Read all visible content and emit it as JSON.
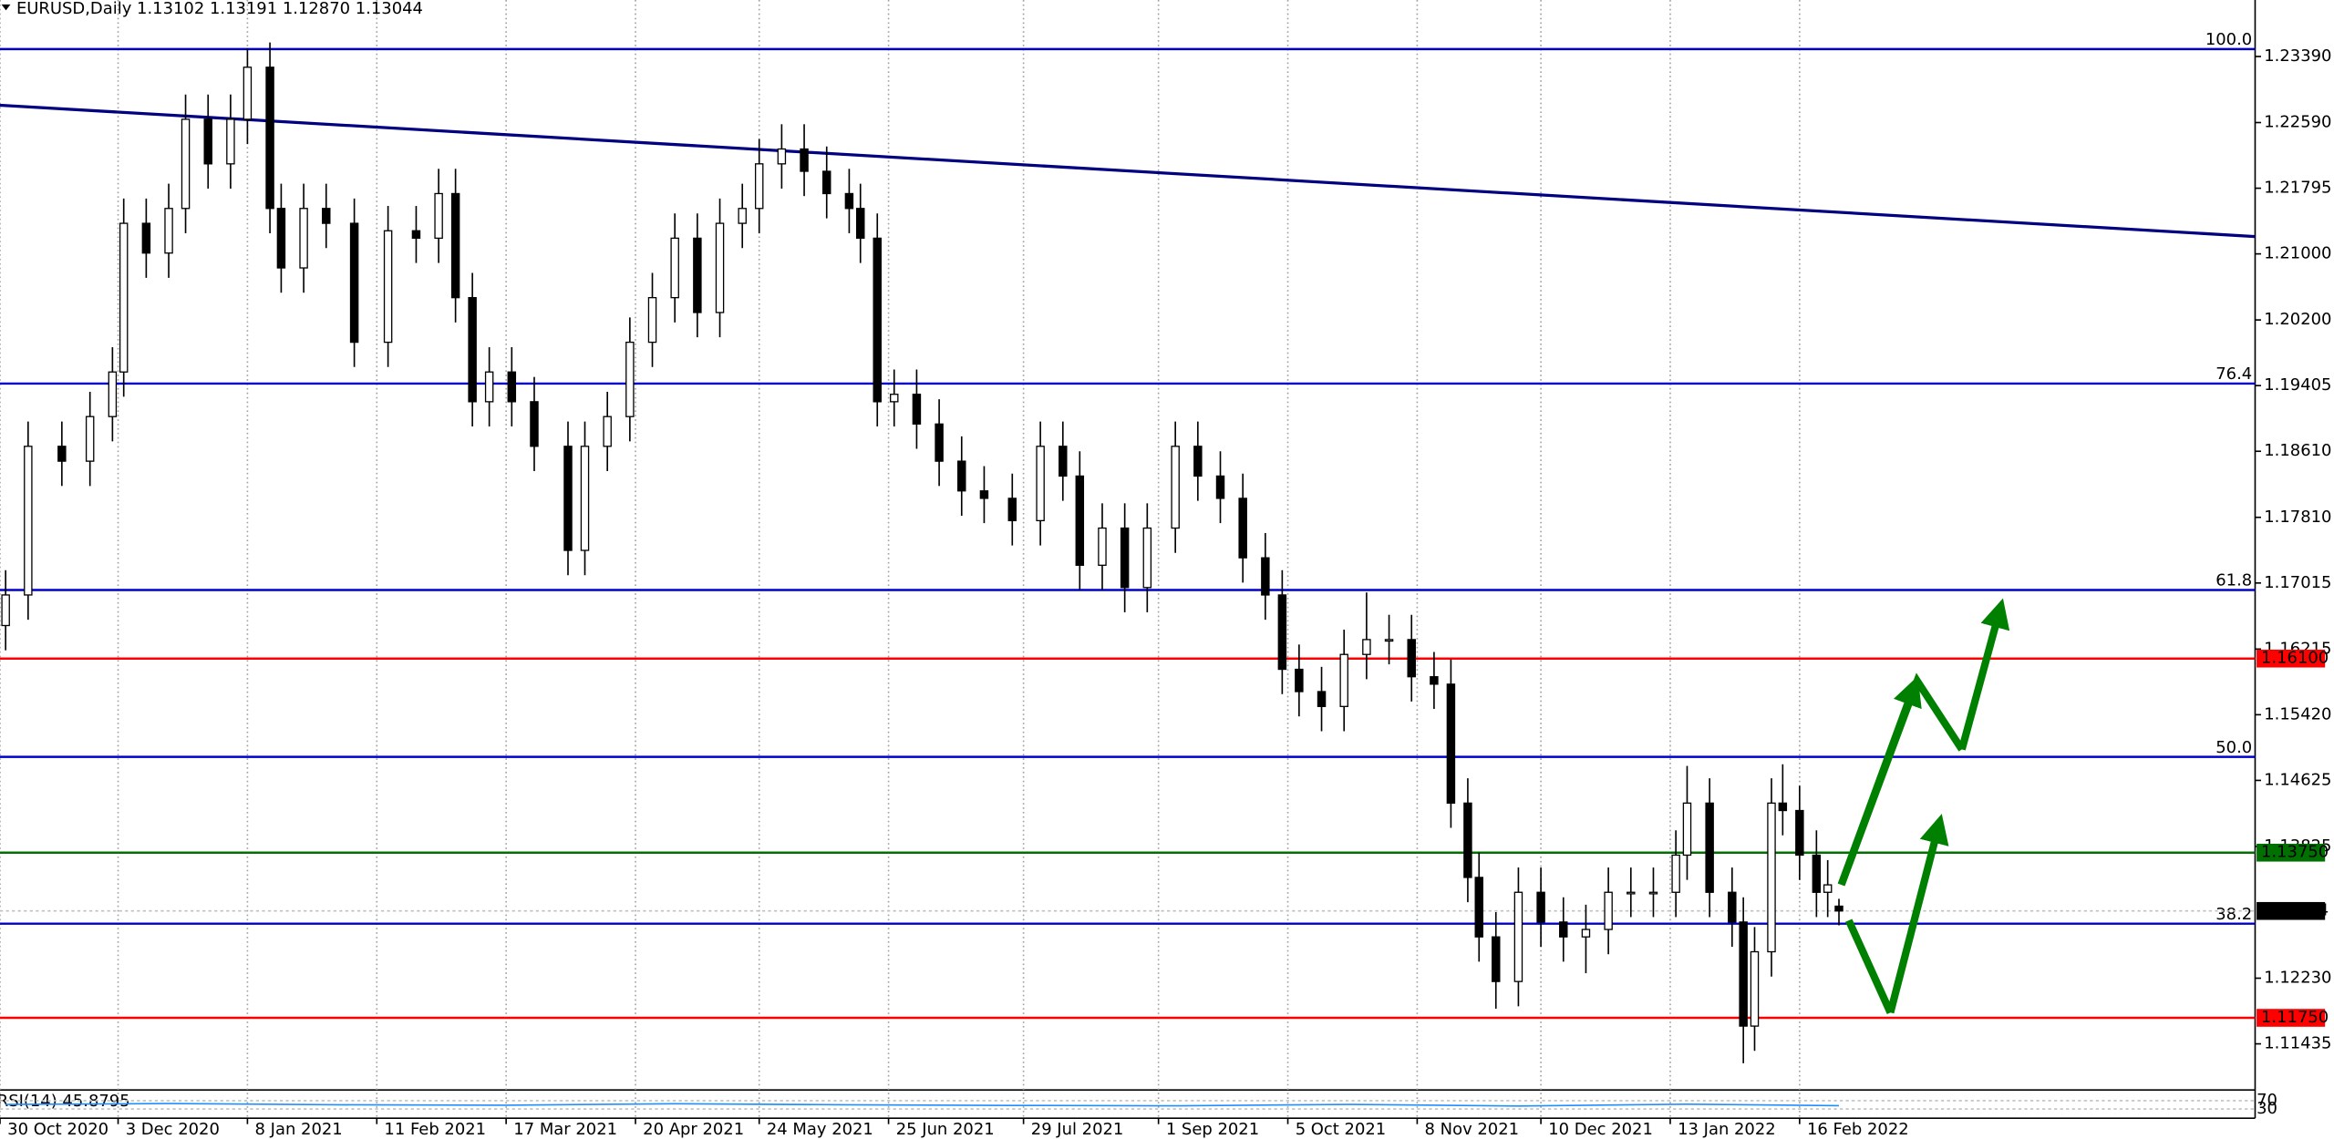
{
  "chart_data": {
    "type": "candlestick",
    "header": {
      "symbol": "EURUSD,Daily",
      "ohlc": [
        {
          "value": 1.13102,
          "label": "1.13102"
        },
        {
          "value": 1.13191,
          "label": "1.13191"
        },
        {
          "value": 1.1287,
          "label": "1.12870"
        },
        {
          "value": 1.13044,
          "label": "1.13044"
        }
      ]
    },
    "x": [
      1,
      5,
      11,
      16,
      20,
      22,
      26,
      30,
      33,
      37,
      41,
      44,
      48,
      50,
      54,
      58,
      63,
      69,
      74,
      78,
      81,
      84,
      87,
      91,
      95,
      101,
      104,
      108,
      112,
      116,
      120,
      124,
      128,
      132,
      135,
      139,
      143,
      147,
      151,
      153,
      156,
      159,
      163,
      167,
      171,
      175,
      180,
      185,
      189,
      192,
      196,
      200,
      204,
      209,
      213,
      217,
      221,
      225,
      228,
      231,
      235,
      239,
      243,
      247,
      251,
      255,
      258,
      261,
      263,
      266,
      270,
      274,
      278,
      282,
      286,
      290,
      294,
      298,
      300,
      304,
      308,
      310,
      312,
      315,
      317,
      320,
      323,
      325,
      327
    ],
    "open": [
      1.165,
      1.1687,
      1.1867,
      1.1849,
      1.1903,
      1.1957,
      1.2137,
      1.2101,
      1.2155,
      1.2263,
      1.2209,
      1.2263,
      1.2326,
      1.2155,
      1.2083,
      1.2155,
      1.2137,
      1.1993,
      1.2128,
      1.2119,
      1.2173,
      1.2047,
      1.1921,
      1.1957,
      1.1921,
      1.1867,
      1.1741,
      1.1867,
      1.1903,
      1.1993,
      1.2047,
      1.2119,
      1.2029,
      1.2137,
      1.2155,
      1.2209,
      1.2227,
      1.22,
      1.2173,
      1.2155,
      1.2119,
      1.1921,
      1.193,
      1.1894,
      1.1849,
      1.1813,
      1.1804,
      1.1777,
      1.1867,
      1.1831,
      1.1723,
      1.1768,
      1.1696,
      1.1768,
      1.1867,
      1.1831,
      1.1804,
      1.1732,
      1.1687,
      1.1597,
      1.157,
      1.1552,
      1.1615,
      1.1633,
      1.1633,
      1.1588,
      1.1579,
      1.1435,
      1.1345,
      1.1273,
      1.1219,
      1.1327,
      1.1291,
      1.1273,
      1.1282,
      1.1327,
      1.1327,
      1.1327,
      1.1372,
      1.1435,
      1.1327,
      1.1291,
      1.1165,
      1.1255,
      1.1435,
      1.1426,
      1.1372,
      1.1327,
      1.13102
    ],
    "high": [
      1.1717,
      1.1897,
      1.1897,
      1.1933,
      1.1987,
      1.2167,
      1.2167,
      1.2185,
      1.2293,
      1.2293,
      1.2293,
      1.2349,
      1.2356,
      1.2185,
      1.2185,
      1.2185,
      1.2167,
      1.2158,
      1.2158,
      1.2203,
      1.2203,
      1.2077,
      1.1987,
      1.1987,
      1.1951,
      1.1897,
      1.1897,
      1.1933,
      1.2023,
      1.2077,
      1.2149,
      1.2149,
      1.2167,
      1.2185,
      1.2239,
      1.2257,
      1.2257,
      1.223,
      1.2203,
      1.2185,
      1.2149,
      1.196,
      1.196,
      1.1924,
      1.1879,
      1.1843,
      1.1834,
      1.1897,
      1.1897,
      1.1861,
      1.1798,
      1.1798,
      1.1798,
      1.1897,
      1.1897,
      1.1861,
      1.1834,
      1.1762,
      1.1717,
      1.1627,
      1.16,
      1.1645,
      1.169,
      1.1663,
      1.1663,
      1.1618,
      1.1609,
      1.1465,
      1.1375,
      1.1303,
      1.1357,
      1.1357,
      1.1321,
      1.1312,
      1.1357,
      1.1357,
      1.1357,
      1.1402,
      1.148,
      1.1465,
      1.1357,
      1.1321,
      1.1285,
      1.1465,
      1.1482,
      1.1456,
      1.1402,
      1.1366,
      1.13191
    ],
    "low": [
      1.162,
      1.1657,
      1.1819,
      1.1819,
      1.1873,
      1.1927,
      1.2071,
      1.2071,
      1.2125,
      1.2179,
      1.2179,
      1.2233,
      1.2125,
      1.2053,
      1.2053,
      1.2107,
      1.1963,
      1.1963,
      1.2089,
      1.2089,
      1.2017,
      1.1891,
      1.1891,
      1.1891,
      1.1837,
      1.1711,
      1.1711,
      1.1837,
      1.1873,
      1.1963,
      1.2017,
      1.1999,
      1.1999,
      1.2107,
      1.2125,
      1.2179,
      1.217,
      1.2143,
      1.2125,
      1.2089,
      1.1891,
      1.1891,
      1.1864,
      1.1819,
      1.1783,
      1.1774,
      1.1747,
      1.1747,
      1.1801,
      1.1693,
      1.1693,
      1.1666,
      1.1666,
      1.1738,
      1.1801,
      1.1774,
      1.1702,
      1.1657,
      1.1567,
      1.154,
      1.1522,
      1.1522,
      1.1585,
      1.1603,
      1.1558,
      1.1549,
      1.1405,
      1.1315,
      1.1243,
      1.1186,
      1.1189,
      1.1261,
      1.1243,
      1.1229,
      1.1252,
      1.1297,
      1.1297,
      1.1297,
      1.1342,
      1.1297,
      1.1261,
      1.112,
      1.1135,
      1.1225,
      1.1396,
      1.1342,
      1.1297,
      1.1297,
      1.1287
    ],
    "close": [
      1.1687,
      1.1867,
      1.1849,
      1.1903,
      1.1957,
      1.2137,
      1.2101,
      1.2155,
      1.2263,
      1.2209,
      1.2263,
      1.2326,
      1.2155,
      1.2083,
      1.2155,
      1.2137,
      1.1993,
      1.2128,
      1.2119,
      1.2173,
      1.2047,
      1.1921,
      1.1957,
      1.1921,
      1.1867,
      1.1741,
      1.1867,
      1.1903,
      1.1993,
      1.2047,
      1.2119,
      1.2029,
      1.2137,
      1.2155,
      1.2209,
      1.2227,
      1.22,
      1.2173,
      1.2155,
      1.2119,
      1.1921,
      1.193,
      1.1894,
      1.1849,
      1.1813,
      1.1804,
      1.1777,
      1.1867,
      1.1831,
      1.1723,
      1.1768,
      1.1696,
      1.1768,
      1.1867,
      1.1831,
      1.1804,
      1.1732,
      1.1687,
      1.1597,
      1.157,
      1.1552,
      1.1615,
      1.1633,
      1.1633,
      1.1588,
      1.1579,
      1.1435,
      1.1345,
      1.1273,
      1.1219,
      1.1327,
      1.1291,
      1.1273,
      1.1282,
      1.1327,
      1.1327,
      1.1327,
      1.1372,
      1.1435,
      1.1327,
      1.1291,
      1.1165,
      1.1255,
      1.1435,
      1.1426,
      1.1372,
      1.1327,
      1.1336,
      1.13044
    ],
    "colors": {
      "up": "#ffffff",
      "down": "#000000",
      "outline": "#000000",
      "fib": "#0000cd"
    },
    "xlim": [
      0,
      401
    ],
    "ylim": [
      1.10877,
      1.24074
    ],
    "yticks": [
      {
        "value": 1.2339,
        "label": "1.23390"
      },
      {
        "value": 1.2259,
        "label": "1.22590"
      },
      {
        "value": 1.21795,
        "label": "1.21795"
      },
      {
        "value": 1.21,
        "label": "1.21000"
      },
      {
        "value": 1.202,
        "label": "1.20200"
      },
      {
        "value": 1.19405,
        "label": "1.19405"
      },
      {
        "value": 1.1861,
        "label": "1.18610"
      },
      {
        "value": 1.1781,
        "label": "1.17810"
      },
      {
        "value": 1.17015,
        "label": "1.17015"
      },
      {
        "value": 1.16215,
        "label": "1.16215"
      },
      {
        "value": 1.1542,
        "label": "1.15420"
      },
      {
        "value": 1.14625,
        "label": "1.14625"
      },
      {
        "value": 1.13825,
        "label": "1.13825"
      },
      {
        "value": 1.1223,
        "label": "1.12230"
      },
      {
        "value": 1.11435,
        "label": "1.11435"
      }
    ],
    "xticks": [
      {
        "value": 0,
        "label": "30 Oct 2020"
      },
      {
        "value": 21,
        "label": "3 Dec 2020"
      },
      {
        "value": 44,
        "label": "8 Jan 2021"
      },
      {
        "value": 67,
        "label": "11 Feb 2021"
      },
      {
        "value": 90,
        "label": "17 Mar 2021"
      },
      {
        "value": 113,
        "label": "20 Apr 2021"
      },
      {
        "value": 135,
        "label": "24 May 2021"
      },
      {
        "value": 158,
        "label": "25 Jun 2021"
      },
      {
        "value": 182,
        "label": "29 Jul 2021"
      },
      {
        "value": 206,
        "label": "1 Sep 2021"
      },
      {
        "value": 229,
        "label": "5 Oct 2021"
      },
      {
        "value": 252,
        "label": "8 Nov 2021"
      },
      {
        "value": 274,
        "label": "10 Dec 2021"
      },
      {
        "value": 297,
        "label": "13 Jan 2022"
      },
      {
        "value": 320,
        "label": "16 Feb 2022"
      }
    ],
    "trendline": {
      "x": [
        0,
        401
      ],
      "y": [
        1.228,
        1.2121
      ],
      "color": "#000080"
    },
    "fib_levels": [
      {
        "value": 1.2348,
        "label": "100.0"
      },
      {
        "value": 1.1943,
        "label": "76.4"
      },
      {
        "value": 1.1693,
        "label": "61.8"
      },
      {
        "value": 1.1491,
        "label": "50.0"
      },
      {
        "value": 1.1289,
        "label": "38.2"
      }
    ],
    "levels": [
      {
        "value": 1.161,
        "label": "1.16100",
        "color": "#ff0000"
      },
      {
        "value": 1.1375,
        "label": "1.13750",
        "color": "#007000"
      },
      {
        "value": 1.1175,
        "label": "1.11750",
        "color": "#ff0000"
      }
    ],
    "rsi": {
      "label": "RSI(14) 45.8795",
      "x": [
        1,
        30,
        60,
        90,
        120,
        150,
        180,
        210,
        240,
        270,
        300,
        327
      ],
      "values": [
        52,
        56,
        50,
        48,
        55,
        50,
        47,
        45,
        52,
        44,
        53,
        45.88
      ],
      "ylim": [
        0,
        100
      ],
      "levels": [
        70,
        30
      ],
      "color": "#1e90ff"
    }
  }
}
